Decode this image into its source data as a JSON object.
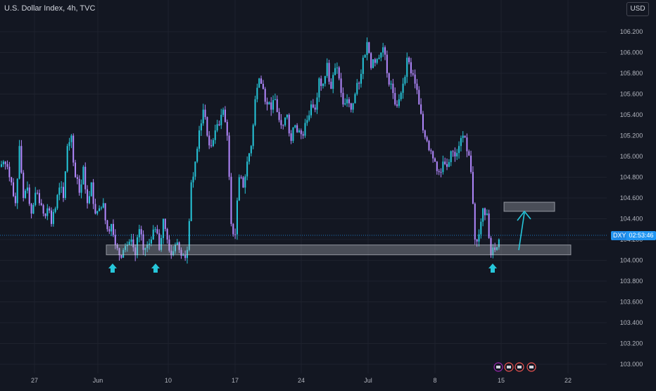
{
  "header": {
    "title": "U.S. Dollar Index, 4h, TVC",
    "currency_button": "USD"
  },
  "price_tag": {
    "symbol": "DXY",
    "countdown": "02:53:46",
    "price": 104.16
  },
  "colors": {
    "background": "#131722",
    "up": "#26c6da",
    "down": "#b388ff",
    "annotation": "#26c6da",
    "box_fill": "#b2b5be"
  },
  "chart_data": {
    "type": "candlestick",
    "title": "U.S. Dollar Index, 4h, TVC",
    "y_ticks": [
      "106.200",
      "106.000",
      "105.800",
      "105.600",
      "105.400",
      "105.200",
      "105.000",
      "104.800",
      "104.600",
      "104.400",
      "104.200",
      "104.000",
      "103.800",
      "103.600",
      "103.400",
      "103.200",
      "103.000"
    ],
    "x_ticks": [
      "27",
      "Jun",
      "10",
      "17",
      "24",
      "Jul",
      "8",
      "15",
      "22"
    ],
    "ylim": [
      102.95,
      106.4
    ],
    "grid": true,
    "path_close": [
      104.95,
      104.9,
      104.75,
      104.55,
      105.1,
      104.6,
      104.7,
      104.45,
      104.65,
      104.55,
      104.45,
      104.5,
      104.35,
      104.5,
      104.7,
      104.6,
      105.1,
      105.2,
      104.8,
      104.65,
      104.9,
      104.55,
      104.75,
      104.45,
      104.5,
      104.55,
      104.3,
      104.35,
      104.15,
      104.05,
      104.1,
      104.15,
      104.2,
      104.05,
      104.3,
      104.1,
      104.15,
      104.2,
      104.3,
      104.1,
      104.4,
      104.2,
      104.05,
      104.15,
      104.1,
      104.05,
      104.1,
      104.75,
      104.95,
      105.25,
      105.45,
      105.2,
      105.1,
      105.25,
      105.3,
      105.45,
      105.2,
      104.35,
      104.25,
      104.8,
      104.7,
      104.95,
      105.1,
      105.55,
      105.75,
      105.65,
      105.5,
      105.45,
      105.55,
      105.35,
      105.3,
      105.4,
      105.15,
      105.3,
      105.25,
      105.2,
      105.35,
      105.5,
      105.45,
      105.75,
      105.7,
      105.9,
      105.65,
      105.85,
      105.75,
      105.5,
      105.55,
      105.45,
      105.6,
      105.7,
      105.95,
      106.1,
      105.85,
      105.9,
      105.95,
      106.05,
      105.8,
      105.7,
      105.5,
      105.55,
      105.7,
      105.95,
      105.8,
      105.7,
      105.5,
      105.25,
      105.15,
      105.05,
      104.95,
      104.85,
      104.95,
      104.9,
      105.05,
      105.0,
      105.1,
      105.2,
      105.05,
      104.85,
      104.2,
      104.25,
      104.5,
      104.45,
      104.05,
      104.1,
      104.2
    ]
  },
  "annotations": {
    "support_zone": {
      "y_low": 103.98,
      "y_high": 104.08
    },
    "target_zone": {
      "y_low": 104.48,
      "y_high": 104.56
    },
    "support_touch_markers": [
      "arrow-up",
      "arrow-up",
      "arrow-up"
    ]
  }
}
